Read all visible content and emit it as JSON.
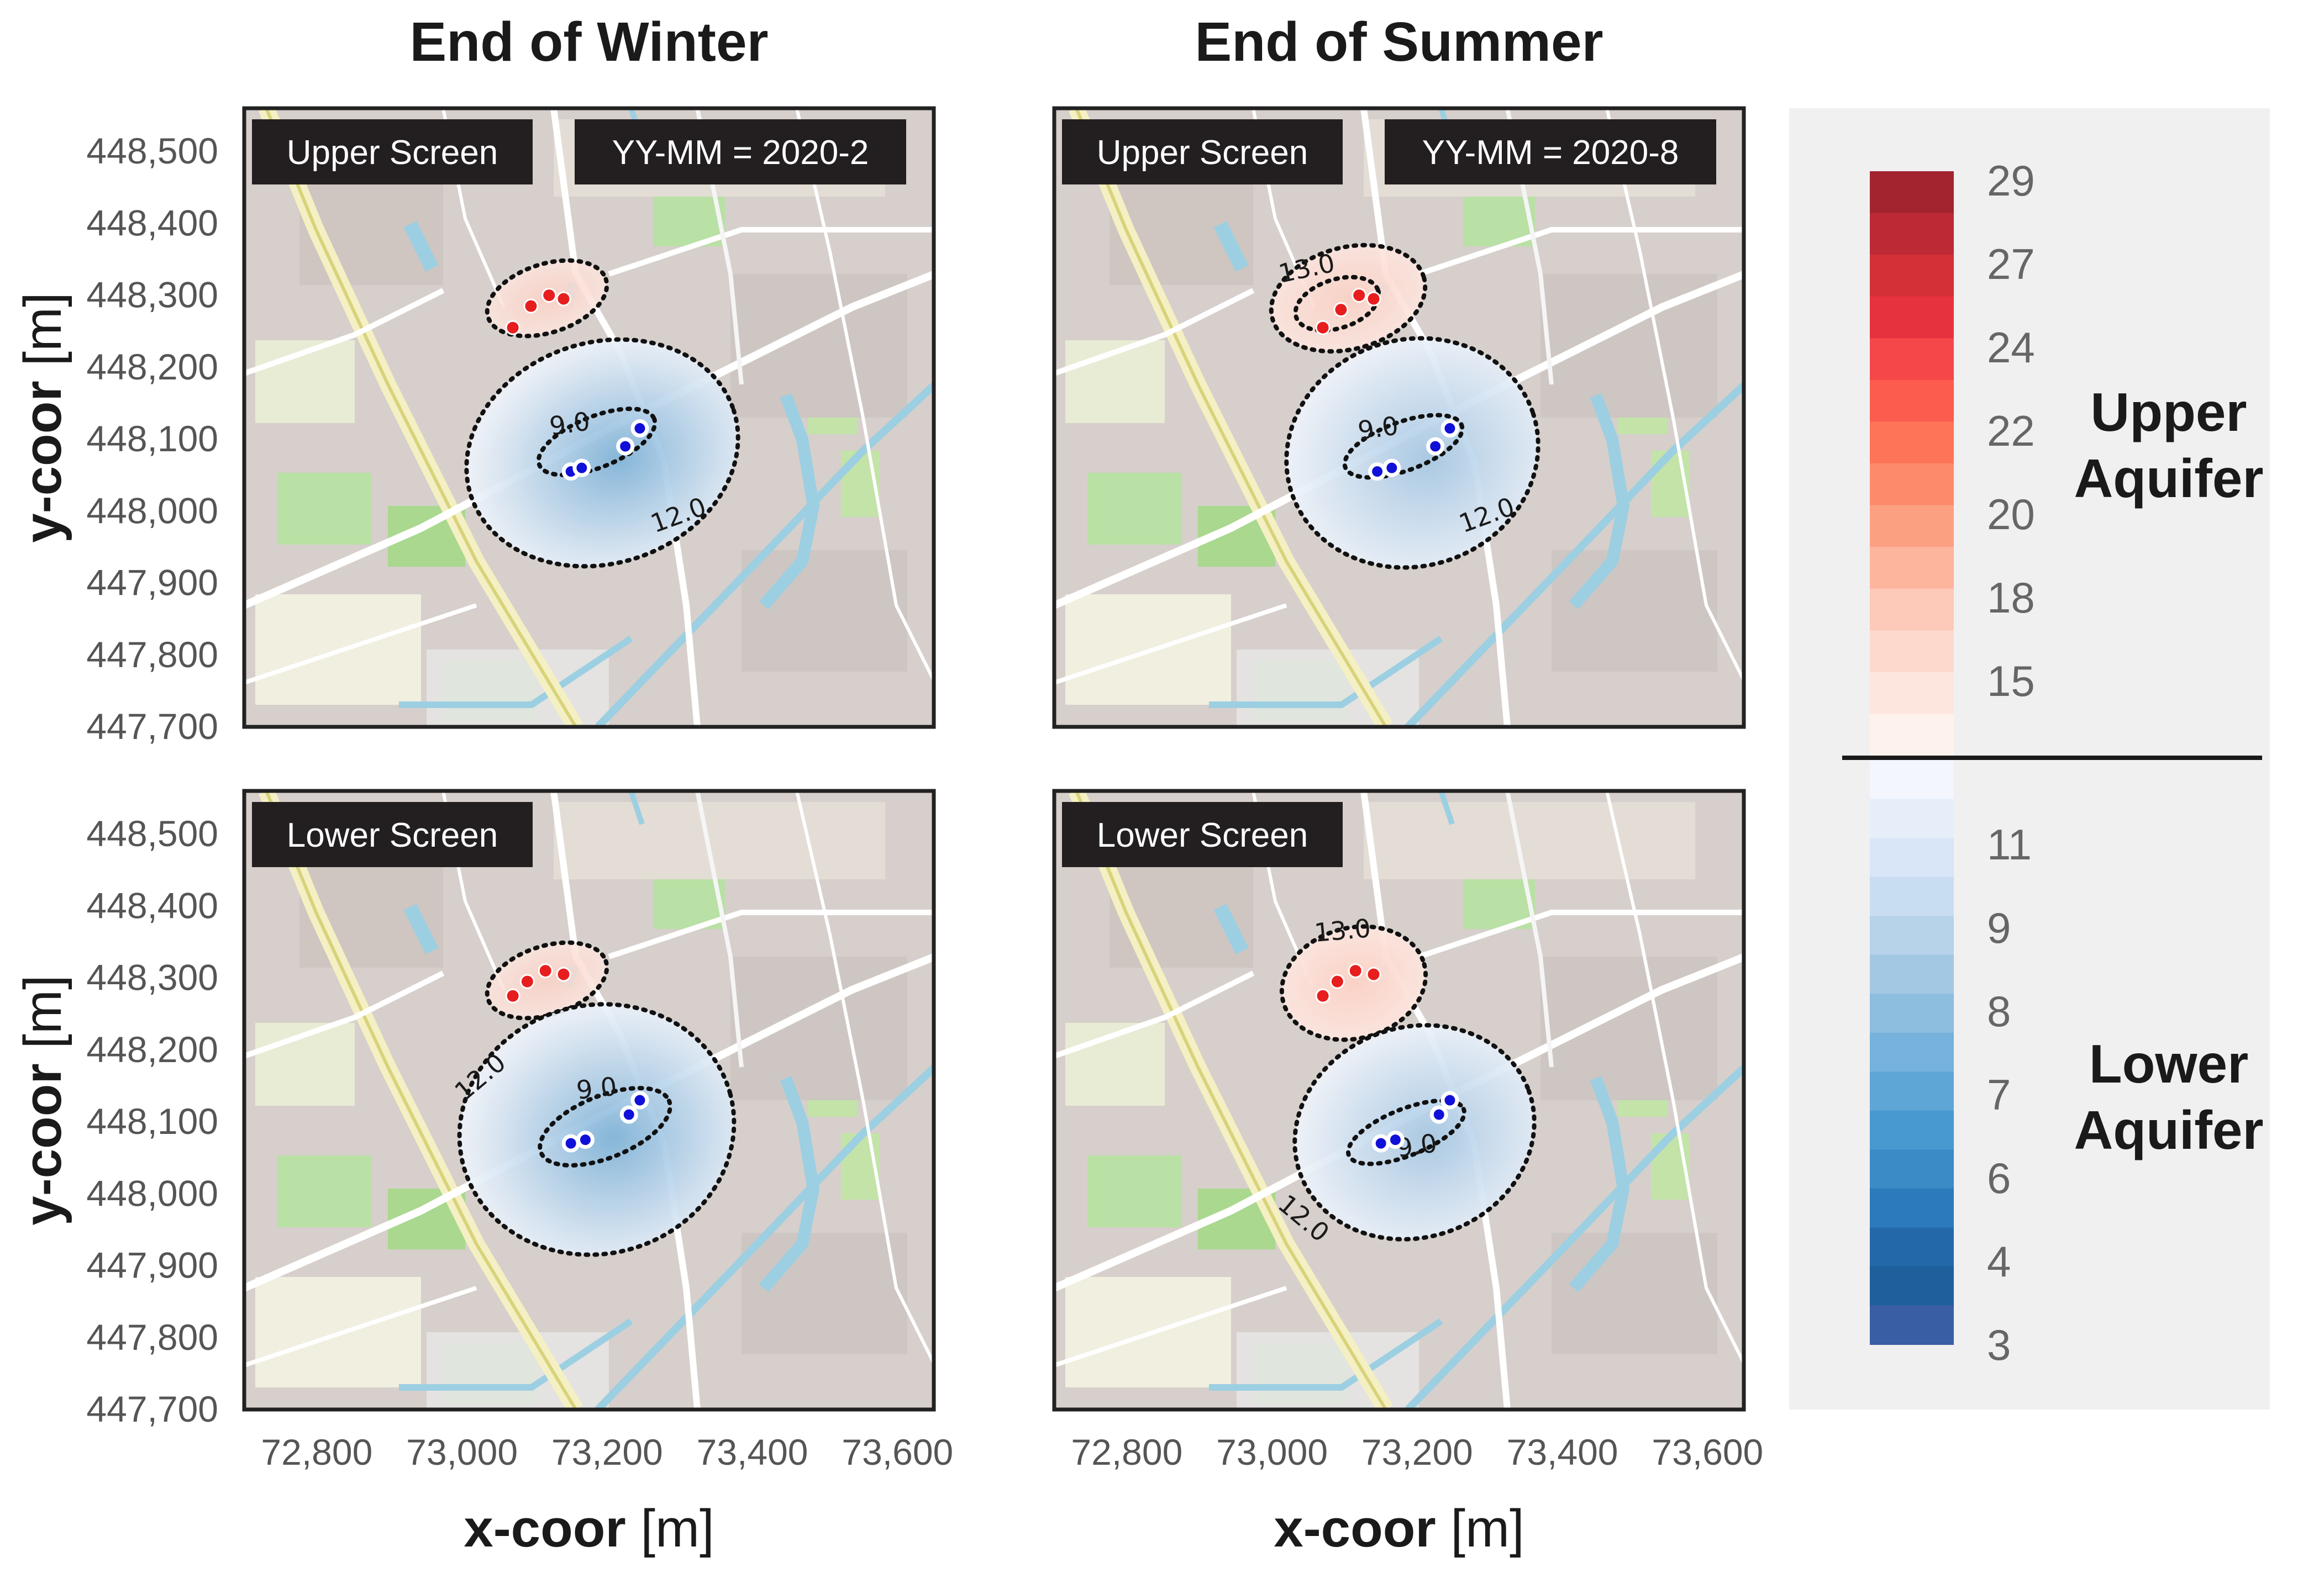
{
  "figure": {
    "column_titles": [
      "End of Winter",
      "End of Summer"
    ],
    "ylabel": "y-coor",
    "ylabel_unit": "[m]",
    "xlabel": "x-coor",
    "xlabel_unit": "[m]",
    "x_ticks": [
      "72,800",
      "73,000",
      "73,200",
      "73,400",
      "73,600"
    ],
    "y_ticks": [
      "448,500",
      "448,400",
      "448,300",
      "448,200",
      "448,100",
      "448,000",
      "447,900",
      "447,800",
      "447,700"
    ]
  },
  "panels": [
    {
      "screen_label": "Upper Screen",
      "date_label": "YY-MM = 2020-2",
      "contour_labels": [
        "9.0",
        "12.0"
      ]
    },
    {
      "screen_label": "Upper Screen",
      "date_label": "YY-MM = 2020-8",
      "contour_labels": [
        "13.0",
        "9.0",
        "12.0"
      ]
    },
    {
      "screen_label": "Lower Screen",
      "date_label": "",
      "contour_labels": [
        "12.0",
        "9.0"
      ]
    },
    {
      "screen_label": "Lower Screen",
      "date_label": "",
      "contour_labels": [
        "13.0",
        "9.0",
        "12.0"
      ]
    }
  ],
  "colorbar": {
    "upper_title_line1": "Upper",
    "upper_title_line2": "Aquifer",
    "lower_title_line1": "Lower",
    "lower_title_line2": "Aquifer",
    "upper_tick_labels": [
      "29",
      "27",
      "24",
      "22",
      "20",
      "18",
      "15"
    ],
    "lower_tick_labels": [
      "11",
      "9",
      "8",
      "7",
      "6",
      "4",
      "3"
    ],
    "upper_colors": [
      "#a3232f",
      "#bd2a36",
      "#d33038",
      "#e6323e",
      "#f5474a",
      "#fb5c4e",
      "#fd7458",
      "#fd8a6a",
      "#fca082",
      "#fdb59d",
      "#fdc9b8",
      "#fdd9cd",
      "#fde6dd",
      "#fef2ec"
    ],
    "lower_colors": [
      "#f3f6fd",
      "#e6eefa",
      "#d8e6f7",
      "#c9ddf1",
      "#b6d3ea",
      "#a3c8e4",
      "#8dbedf",
      "#76b2dc",
      "#5ea6d6",
      "#4899cf",
      "#3a8bc6",
      "#2c7abb",
      "#2369a9",
      "#1e5f9c",
      "#3a5ea4"
    ]
  },
  "chart_data": [
    {
      "type": "heatmap",
      "title": "End of Winter",
      "panel": "Upper Screen",
      "date": "2020-2",
      "xlabel": "x-coor [m]",
      "ylabel": "y-coor [m]",
      "xlim": [
        72700,
        73650
      ],
      "ylim": [
        447700,
        448560
      ],
      "contours": [
        9.0,
        12.0
      ],
      "warm_wells": [
        [
          73070,
          448255
        ],
        [
          73095,
          448285
        ],
        [
          73120,
          448300
        ],
        [
          73140,
          448295
        ]
      ],
      "cold_wells": [
        [
          73150,
          448055
        ],
        [
          73165,
          448060
        ],
        [
          73225,
          448090
        ],
        [
          73245,
          448115
        ]
      ]
    },
    {
      "type": "heatmap",
      "title": "End of Summer",
      "panel": "Upper Screen",
      "date": "2020-8",
      "xlabel": "x-coor [m]",
      "ylabel": "y-coor [m]",
      "xlim": [
        72700,
        73650
      ],
      "ylim": [
        447700,
        448560
      ],
      "contours": [
        13.0,
        9.0,
        12.0
      ],
      "warm_wells": [
        [
          73070,
          448255
        ],
        [
          73095,
          448280
        ],
        [
          73120,
          448300
        ],
        [
          73140,
          448295
        ]
      ],
      "cold_wells": [
        [
          73145,
          448055
        ],
        [
          73165,
          448060
        ],
        [
          73225,
          448090
        ],
        [
          73245,
          448115
        ]
      ]
    },
    {
      "type": "heatmap",
      "title": "End of Winter",
      "panel": "Lower Screen",
      "date": "2020-2",
      "xlabel": "x-coor [m]",
      "ylabel": "y-coor [m]",
      "xlim": [
        72700,
        73650
      ],
      "ylim": [
        447700,
        448560
      ],
      "contours": [
        12.0,
        9.0
      ],
      "warm_wells": [
        [
          73070,
          448275
        ],
        [
          73090,
          448295
        ],
        [
          73115,
          448310
        ],
        [
          73140,
          448305
        ]
      ],
      "cold_wells": [
        [
          73150,
          448070
        ],
        [
          73170,
          448075
        ],
        [
          73230,
          448110
        ],
        [
          73245,
          448130
        ]
      ]
    },
    {
      "type": "heatmap",
      "title": "End of Summer",
      "panel": "Lower Screen",
      "date": "2020-8",
      "xlabel": "x-coor [m]",
      "ylabel": "y-coor [m]",
      "xlim": [
        72700,
        73650
      ],
      "ylim": [
        447700,
        448560
      ],
      "contours": [
        13.0,
        9.0,
        12.0
      ],
      "warm_wells": [
        [
          73070,
          448275
        ],
        [
          73090,
          448295
        ],
        [
          73115,
          448310
        ],
        [
          73140,
          448305
        ]
      ],
      "cold_wells": [
        [
          73150,
          448070
        ],
        [
          73170,
          448075
        ],
        [
          73230,
          448110
        ],
        [
          73245,
          448130
        ]
      ]
    }
  ]
}
